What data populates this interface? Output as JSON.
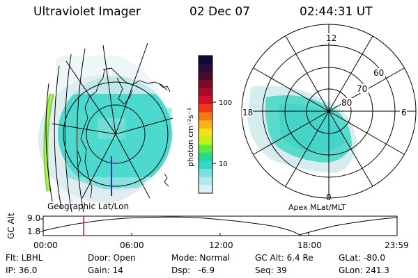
{
  "header": {
    "instrument": "Ultraviolet Imager",
    "date": "02 Dec 07",
    "time": "02:44:31 UT"
  },
  "geo_panel": {
    "label": "Geographic Lat/Lon"
  },
  "polar_panel": {
    "label": "Apex MLat/MLT",
    "mlt_labels": {
      "top": "12",
      "left": "18",
      "right": "6",
      "bottom": "0"
    },
    "lat_labels": [
      "60",
      "70",
      "80"
    ]
  },
  "colorbar": {
    "unit_label": "photon cm⁻²s⁻¹",
    "ticks": [
      "100",
      "10"
    ],
    "colors": [
      "#0b0b3a",
      "#2a0b3a",
      "#4a0b2a",
      "#7a0b2a",
      "#a80a2a",
      "#d4102a",
      "#ee3a1a",
      "#f5781a",
      "#f7b21a",
      "#f2e21a",
      "#bff21a",
      "#62e83a",
      "#26d98a",
      "#36d6c8",
      "#7ddfe0",
      "#b2e8ee",
      "#d9f2f6"
    ]
  },
  "timeline": {
    "ylabel": "GC Alt",
    "y_ticks": [
      "9.0",
      "1.8"
    ],
    "x_ticks": [
      "00:00",
      "06:00",
      "12:00",
      "18:00",
      "23:59"
    ],
    "marker_time": "02:44",
    "marker_color": "#d01a1a"
  },
  "info": {
    "filter": "Flt: LBHL",
    "ip": "IP: 36.0",
    "door": "Door: Open",
    "gain": "Gain: 14",
    "mode": "Mode: Normal",
    "dsp": "Dsp:   -6.9",
    "gc_alt": "GC Alt: 6.4 Re",
    "seq": "Seq: 39",
    "glat": "GLat: -80.0",
    "glon": "GLon: 241.3"
  }
}
